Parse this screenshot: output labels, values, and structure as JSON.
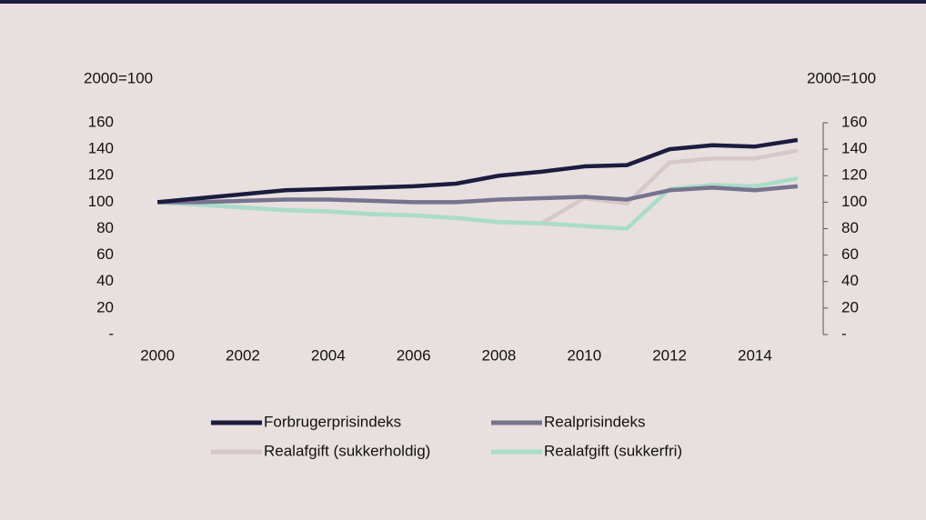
{
  "chart_data": {
    "type": "line",
    "y_label": "2000=100",
    "y2_label": "2000=100",
    "x": [
      2000,
      2001,
      2002,
      2003,
      2004,
      2005,
      2006,
      2007,
      2008,
      2009,
      2010,
      2011,
      2012,
      2013,
      2014,
      2015
    ],
    "xlim": [
      1999.4,
      2015.6
    ],
    "xticks": [
      2000,
      2002,
      2004,
      2006,
      2008,
      2010,
      2012,
      2014
    ],
    "ylim": [
      0,
      160
    ],
    "yticks": [
      {
        "value": 0,
        "label": "-"
      },
      20,
      40,
      60,
      80,
      100,
      120,
      140,
      160
    ],
    "y2lim": [
      0,
      160
    ],
    "y2ticks": [
      {
        "value": 0,
        "label": "-"
      },
      20,
      40,
      60,
      80,
      100,
      120,
      140,
      160
    ],
    "series": [
      {
        "name": "Forbrugerprisindeks",
        "color": "#1c1b40",
        "values": [
          100,
          103,
          106,
          109,
          110,
          111,
          112,
          114,
          120,
          123,
          127,
          128,
          140,
          143,
          142,
          147
        ]
      },
      {
        "name": "Realprisindeks",
        "color": "#77738f",
        "values": [
          100,
          100,
          101,
          102,
          102,
          101,
          100,
          100,
          102,
          103,
          104,
          102,
          109,
          111,
          109,
          112
        ]
      },
      {
        "name": "Realafgift (sukkerholdig)",
        "color": "#d5c8c6",
        "values": [
          100,
          98,
          96,
          94,
          93,
          91,
          90,
          88,
          85,
          84,
          103,
          99,
          130,
          133,
          133,
          139
        ]
      },
      {
        "name": "Realafgift (sukkerfri)",
        "color": "#a9dccb",
        "values": [
          100,
          98,
          96,
          94,
          93,
          91,
          90,
          88,
          85,
          84,
          82,
          80,
          110,
          113,
          112,
          118
        ]
      }
    ]
  }
}
